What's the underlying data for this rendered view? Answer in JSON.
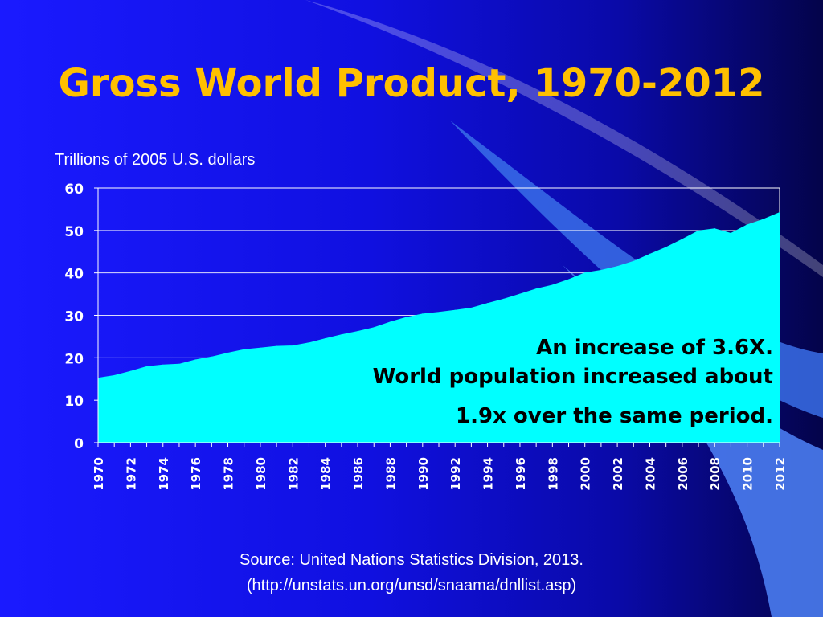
{
  "chart_data": {
    "type": "area",
    "title": "Gross World Product, 1970-2012",
    "ylabel": "Trillions of 2005 U.S. dollars",
    "xlabel": "",
    "ylim": [
      0,
      60
    ],
    "yticks": [
      0,
      10,
      20,
      30,
      40,
      50,
      60
    ],
    "x": [
      1970,
      1971,
      1972,
      1973,
      1974,
      1975,
      1976,
      1977,
      1978,
      1979,
      1980,
      1981,
      1982,
      1983,
      1984,
      1985,
      1986,
      1987,
      1988,
      1989,
      1990,
      1991,
      1992,
      1993,
      1994,
      1995,
      1996,
      1997,
      1998,
      1999,
      2000,
      2001,
      2002,
      2003,
      2004,
      2005,
      2006,
      2007,
      2008,
      2009,
      2010,
      2011,
      2012
    ],
    "x_tick_labels": [
      "1970",
      "1972",
      "1974",
      "1976",
      "1978",
      "1980",
      "1982",
      "1984",
      "1986",
      "1988",
      "1990",
      "1992",
      "1994",
      "1996",
      "1998",
      "2000",
      "2002",
      "2004",
      "2006",
      "2008",
      "2010",
      "2012"
    ],
    "series": [
      {
        "values": [
          15.2,
          15.8,
          16.8,
          17.9,
          18.3,
          18.5,
          19.5,
          20.2,
          21.1,
          21.9,
          22.3,
          22.7,
          22.8,
          23.5,
          24.5,
          25.4,
          26.2,
          27.1,
          28.4,
          29.5,
          30.3,
          30.7,
          31.2,
          31.7,
          32.8,
          33.8,
          35.0,
          36.2,
          37.1,
          38.4,
          40.0,
          40.6,
          41.5,
          42.7,
          44.4,
          46.0,
          47.9,
          49.9,
          50.4,
          49.3,
          51.3,
          52.6,
          54.2
        ],
        "color": "#00ffff"
      }
    ],
    "grid": true,
    "annotations": [
      "An increase of 3.6X.",
      "World population increased about",
      "1.9x over the same period."
    ],
    "source": [
      "Source: United Nations Statistics Division, 2013.",
      "(http://unstats.un.org/unsd/snaama/dnllist.asp)"
    ]
  }
}
